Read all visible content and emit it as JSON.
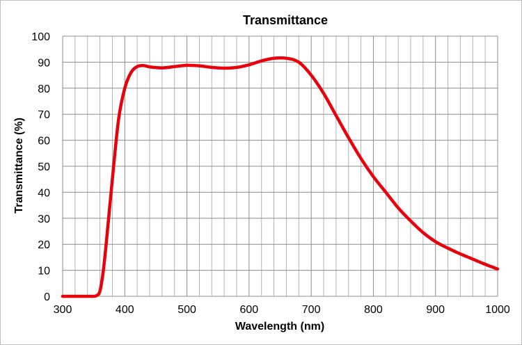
{
  "chart_data": {
    "type": "line",
    "title": "Transmittance",
    "xlabel": "Wavelength (nm)",
    "ylabel": "Transmittance (%)",
    "xlim": [
      300,
      1000
    ],
    "ylim": [
      0,
      100
    ],
    "x_ticks": [
      300,
      400,
      500,
      600,
      700,
      800,
      900,
      1000
    ],
    "y_ticks": [
      0,
      10,
      20,
      30,
      40,
      50,
      60,
      70,
      80,
      90,
      100
    ],
    "x_minor_step": 20,
    "grid": true,
    "legend": "none",
    "series_color": "#e8000b",
    "series": [
      {
        "x": [
          300,
          320,
          340,
          350,
          355,
          360,
          365,
          370,
          380,
          390,
          400,
          410,
          420,
          430,
          440,
          460,
          480,
          500,
          520,
          540,
          560,
          580,
          600,
          620,
          640,
          660,
          680,
          700,
          720,
          740,
          760,
          780,
          800,
          820,
          840,
          860,
          880,
          900,
          920,
          940,
          960,
          980,
          1000
        ],
        "y": [
          0,
          0,
          0,
          0,
          0.3,
          2,
          9,
          20,
          45,
          68,
          80,
          86,
          88.3,
          88.7,
          88.2,
          87.8,
          88.3,
          88.8,
          88.6,
          88,
          87.7,
          88,
          89,
          90.5,
          91.5,
          91.5,
          90,
          85,
          78,
          69.5,
          61,
          53,
          46,
          40,
          34,
          29,
          24.5,
          21,
          18.5,
          16.3,
          14.3,
          12.3,
          10.5
        ]
      }
    ]
  }
}
